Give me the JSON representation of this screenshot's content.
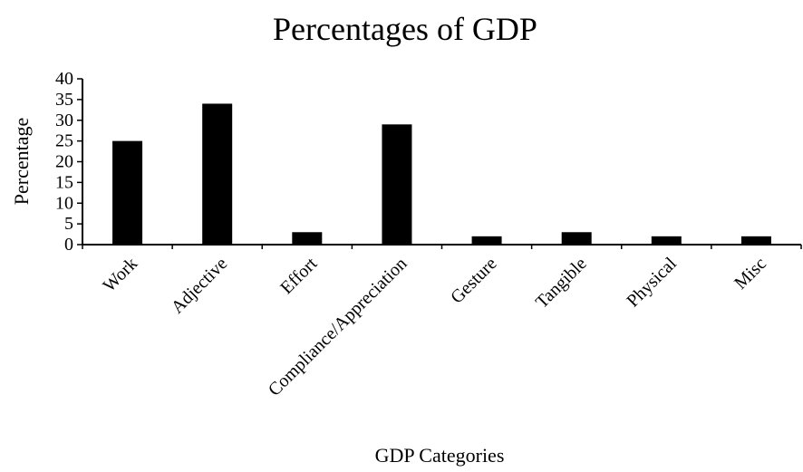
{
  "chart_data": {
    "type": "bar",
    "title": "Percentages of GDP",
    "xlabel": "GDP Categories",
    "ylabel": "Percentage",
    "categories": [
      "Work",
      "Adjective",
      "Effort",
      "Compliance/Appreciation",
      "Gesture",
      "Tangible",
      "Physical",
      "Misc"
    ],
    "values": [
      25,
      34,
      3,
      29,
      2,
      3,
      2,
      2
    ],
    "ylim": [
      0,
      40
    ],
    "yticks": [
      "0",
      "5",
      "10",
      "15",
      "20",
      "25",
      "30",
      "35",
      "40"
    ],
    "grid": false,
    "legend": "none",
    "bar_color": "#000000"
  }
}
